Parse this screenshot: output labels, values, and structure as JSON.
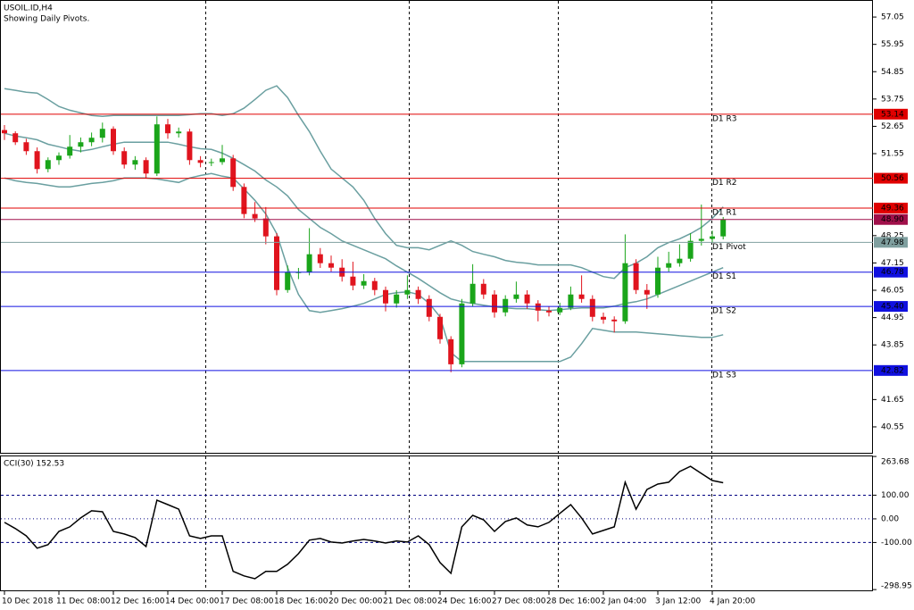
{
  "chart_data": [
    {
      "type": "candlestick",
      "title": "USOIL.ID,H4",
      "subtitle": "Showing Daily Pivots.",
      "categories": [
        "10 Dec 2018",
        null,
        null,
        null,
        null,
        "11 Dec 08:00",
        null,
        null,
        null,
        null,
        "12 Dec 16:00",
        null,
        null,
        null,
        null,
        "14 Dec 00:00",
        null,
        null,
        null,
        null,
        "17 Dec 08:00",
        null,
        null,
        null,
        null,
        "18 Dec 16:00",
        null,
        null,
        null,
        null,
        "20 Dec 00:00",
        null,
        null,
        null,
        null,
        "21 Dec 08:00",
        null,
        null,
        null,
        null,
        "24 Dec 16:00",
        null,
        null,
        null,
        null,
        "27 Dec 08:00",
        null,
        null,
        null,
        null,
        "28 Dec 16:00",
        null,
        null,
        null,
        null,
        "2 Jan 04:00",
        null,
        null,
        null,
        null,
        "3 Jan 12:00",
        null,
        null,
        null,
        null,
        "4 Jan 20:00",
        null
      ],
      "ohlc": [
        [
          52.5,
          52.7,
          52.1,
          52.37
        ],
        [
          52.37,
          52.45,
          51.9,
          52.01
        ],
        [
          52.01,
          52.15,
          51.5,
          51.65
        ],
        [
          51.65,
          51.8,
          50.75,
          50.93
        ],
        [
          50.93,
          51.4,
          50.8,
          51.29
        ],
        [
          51.29,
          51.6,
          51.1,
          51.47
        ],
        [
          51.47,
          52.3,
          51.35,
          51.83
        ],
        [
          51.83,
          52.2,
          51.6,
          52.01
        ],
        [
          52.01,
          52.4,
          51.85,
          52.19
        ],
        [
          52.19,
          52.8,
          52.0,
          52.55
        ],
        [
          52.55,
          52.65,
          51.5,
          51.65
        ],
        [
          51.65,
          51.8,
          50.95,
          51.11
        ],
        [
          51.11,
          51.45,
          50.9,
          51.29
        ],
        [
          51.29,
          51.4,
          50.55,
          50.75
        ],
        [
          50.75,
          53.05,
          50.65,
          52.73
        ],
        [
          52.73,
          52.95,
          52.15,
          52.37
        ],
        [
          52.37,
          52.6,
          52.2,
          52.44
        ],
        [
          52.44,
          52.55,
          51.1,
          51.29
        ],
        [
          51.29,
          51.45,
          51.0,
          51.18
        ],
        [
          51.18,
          51.35,
          51.05,
          51.21
        ],
        [
          51.21,
          51.9,
          51.1,
          51.36
        ],
        [
          51.36,
          51.5,
          50.05,
          50.21
        ],
        [
          50.21,
          50.35,
          48.95,
          49.12
        ],
        [
          49.12,
          49.6,
          48.8,
          48.94
        ],
        [
          48.94,
          49.4,
          47.9,
          48.22
        ],
        [
          48.22,
          48.35,
          45.85,
          46.06
        ],
        [
          46.06,
          47.05,
          45.95,
          46.78
        ],
        [
          46.78,
          46.95,
          46.5,
          46.78
        ],
        [
          46.78,
          48.55,
          46.65,
          47.5
        ],
        [
          47.5,
          47.75,
          46.95,
          47.14
        ],
        [
          47.14,
          47.45,
          46.8,
          46.96
        ],
        [
          46.96,
          47.3,
          46.4,
          46.6
        ],
        [
          46.6,
          47.2,
          46.05,
          46.24
        ],
        [
          46.24,
          46.7,
          46.1,
          46.42
        ],
        [
          46.42,
          46.55,
          45.85,
          46.06
        ],
        [
          46.06,
          46.2,
          45.2,
          45.52
        ],
        [
          45.52,
          46.05,
          45.35,
          45.88
        ],
        [
          45.88,
          46.65,
          45.7,
          46.06
        ],
        [
          46.06,
          46.2,
          45.5,
          45.7
        ],
        [
          45.7,
          45.85,
          44.8,
          44.98
        ],
        [
          44.98,
          45.1,
          43.9,
          44.08
        ],
        [
          44.08,
          44.2,
          42.75,
          43.07
        ],
        [
          43.07,
          45.7,
          42.95,
          45.52
        ],
        [
          45.52,
          47.1,
          45.4,
          46.31
        ],
        [
          46.31,
          46.5,
          45.7,
          45.88
        ],
        [
          45.88,
          46.05,
          44.95,
          45.16
        ],
        [
          45.16,
          45.85,
          45.0,
          45.7
        ],
        [
          45.7,
          46.4,
          45.55,
          45.88
        ],
        [
          45.88,
          46.05,
          45.3,
          45.52
        ],
        [
          45.52,
          45.65,
          44.8,
          45.23
        ],
        [
          45.23,
          45.4,
          45.0,
          45.16
        ],
        [
          45.16,
          45.55,
          45.05,
          45.34
        ],
        [
          45.34,
          46.2,
          45.25,
          45.88
        ],
        [
          45.88,
          46.65,
          45.55,
          45.7
        ],
        [
          45.7,
          45.85,
          44.8,
          44.98
        ],
        [
          44.98,
          45.15,
          44.7,
          44.87
        ],
        [
          44.87,
          45.0,
          44.35,
          44.8
        ],
        [
          44.8,
          48.3,
          44.7,
          47.14
        ],
        [
          47.14,
          47.3,
          45.9,
          46.06
        ],
        [
          46.06,
          46.3,
          45.3,
          45.88
        ],
        [
          45.88,
          47.4,
          45.75,
          46.96
        ],
        [
          46.96,
          47.6,
          46.8,
          47.14
        ],
        [
          47.14,
          47.9,
          47.0,
          47.32
        ],
        [
          47.32,
          48.35,
          47.2,
          48.04
        ],
        [
          48.04,
          49.5,
          47.85,
          48.12
        ],
        [
          48.12,
          48.45,
          47.95,
          48.22
        ],
        [
          48.22,
          49.0,
          48.1,
          48.9
        ]
      ],
      "up_color": "#1aa51a",
      "down_color": "#e0141e",
      "overlays": [
        {
          "color": "#6a9fa0",
          "values": [
            54.17,
            54.1,
            54.02,
            53.99,
            53.73,
            53.45,
            53.3,
            53.19,
            53.09,
            53.05,
            53.09,
            53.09,
            53.09,
            53.09,
            53.09,
            53.09,
            53.09,
            53.12,
            53.16,
            53.16,
            53.09,
            53.16,
            53.38,
            53.73,
            54.1,
            54.28,
            53.81,
            53.09,
            52.44,
            51.65,
            50.93,
            50.57,
            50.21,
            49.67,
            48.94,
            48.33,
            47.86,
            47.76,
            47.76,
            47.68,
            47.86,
            48.04,
            47.86,
            47.61,
            47.5,
            47.4,
            47.25,
            47.18,
            47.14,
            47.07,
            47.07,
            47.07,
            47.07,
            46.96,
            46.78,
            46.6,
            46.53,
            46.96,
            47.14,
            47.4,
            47.76,
            47.97,
            48.12,
            48.33,
            48.58,
            48.94,
            49.41
          ]
        },
        {
          "color": "#6a9fa0",
          "values": [
            52.37,
            52.26,
            52.19,
            52.11,
            51.93,
            51.83,
            51.72,
            51.65,
            51.72,
            51.83,
            51.93,
            52.01,
            52.01,
            52.01,
            52.01,
            52.01,
            51.93,
            51.83,
            51.75,
            51.72,
            51.57,
            51.36,
            51.11,
            50.85,
            50.49,
            50.21,
            49.85,
            49.3,
            48.94,
            48.58,
            48.33,
            48.04,
            47.86,
            47.68,
            47.5,
            47.32,
            47.03,
            46.78,
            46.53,
            46.24,
            45.95,
            45.7,
            45.59,
            45.52,
            45.45,
            45.38,
            45.34,
            45.31,
            45.31,
            45.27,
            45.23,
            45.27,
            45.31,
            45.34,
            45.34,
            45.34,
            45.41,
            45.52,
            45.59,
            45.7,
            45.88,
            46.06,
            46.24,
            46.42,
            46.6,
            46.78,
            46.96
          ]
        },
        {
          "color": "#6a9fa0",
          "values": [
            50.57,
            50.46,
            50.39,
            50.35,
            50.28,
            50.21,
            50.21,
            50.28,
            50.35,
            50.39,
            50.46,
            50.57,
            50.57,
            50.57,
            50.53,
            50.46,
            50.39,
            50.57,
            50.67,
            50.75,
            50.64,
            50.57,
            50.13,
            49.67,
            49.12,
            48.33,
            46.96,
            45.88,
            45.23,
            45.16,
            45.23,
            45.31,
            45.41,
            45.52,
            45.7,
            45.88,
            45.95,
            45.99,
            45.88,
            45.52,
            44.98,
            43.54,
            43.18,
            43.18,
            43.18,
            43.18,
            43.18,
            43.18,
            43.18,
            43.18,
            43.18,
            43.18,
            43.36,
            43.9,
            44.51,
            44.44,
            44.37,
            44.37,
            44.37,
            44.33,
            44.3,
            44.26,
            44.22,
            44.19,
            44.15,
            44.15,
            44.26
          ]
        }
      ],
      "levels": [
        {
          "name": "D1 R3",
          "price": {
            "value": 53.14,
            "label": "53.14"
          },
          "color": "#e00000"
        },
        {
          "name": "D1 R2",
          "price": {
            "value": 50.56,
            "label": "50.56"
          },
          "color": "#e00000"
        },
        {
          "name": "D1 R1",
          "price": {
            "value": 49.36,
            "label": "49.36"
          },
          "color": "#e00000"
        },
        {
          "price": {
            "value": 48.9,
            "label": "48.90"
          },
          "color": "#a0104a"
        },
        {
          "name": "D1 Pivot",
          "price": {
            "value": 47.98,
            "label": "47.98"
          },
          "color": "#7f9f9f"
        },
        {
          "name": "D1 S1",
          "price": {
            "value": 46.78,
            "label": "46.78"
          },
          "color": "#1010e0"
        },
        {
          "name": "D1 S2",
          "price": {
            "value": 45.4,
            "label": "45.40"
          },
          "color": "#1010e0"
        },
        {
          "name": "D1 S3",
          "price": {
            "value": 42.82,
            "label": "42.82"
          },
          "color": "#1010e0"
        }
      ],
      "ylim": [
        39.47,
        57.7
      ],
      "yticks": [
        57.05,
        55.95,
        54.85,
        53.75,
        52.65,
        51.55,
        48.25,
        47.15,
        46.05,
        44.95,
        43.85,
        41.65,
        40.55
      ]
    },
    {
      "type": "line",
      "title": "CCI(30) 152.53",
      "series": [
        {
          "color": "#000000",
          "values": [
            -15,
            -41,
            -72,
            -124,
            -109,
            -53,
            -34,
            4,
            34,
            30,
            -53,
            -64,
            -79,
            -117,
            79,
            60,
            41,
            -72,
            -83,
            -72,
            -72,
            -222,
            -241,
            -253,
            -222,
            -222,
            -192,
            -147,
            -90,
            -83,
            -98,
            -102,
            -94,
            -87,
            -94,
            -102,
            -94,
            -98,
            -72,
            -109,
            -185,
            -230,
            -34,
            15,
            -4,
            -53,
            -11,
            4,
            -26,
            -34,
            -15,
            23,
            60,
            4,
            -64,
            -49,
            -34,
            155,
            41,
            124,
            147,
            155,
            200,
            222,
            192,
            162,
            152.53
          ]
        }
      ],
      "ylim": [
        -306,
        264
      ],
      "yticks": [
        {
          "value": 263.68,
          "label": "263.68"
        },
        {
          "value": 100,
          "label": "100.00"
        },
        {
          "value": 0,
          "label": "0.00"
        },
        {
          "value": -100,
          "label": "-100.00"
        },
        {
          "value": -298.95,
          "label": "-298.95"
        }
      ]
    }
  ]
}
